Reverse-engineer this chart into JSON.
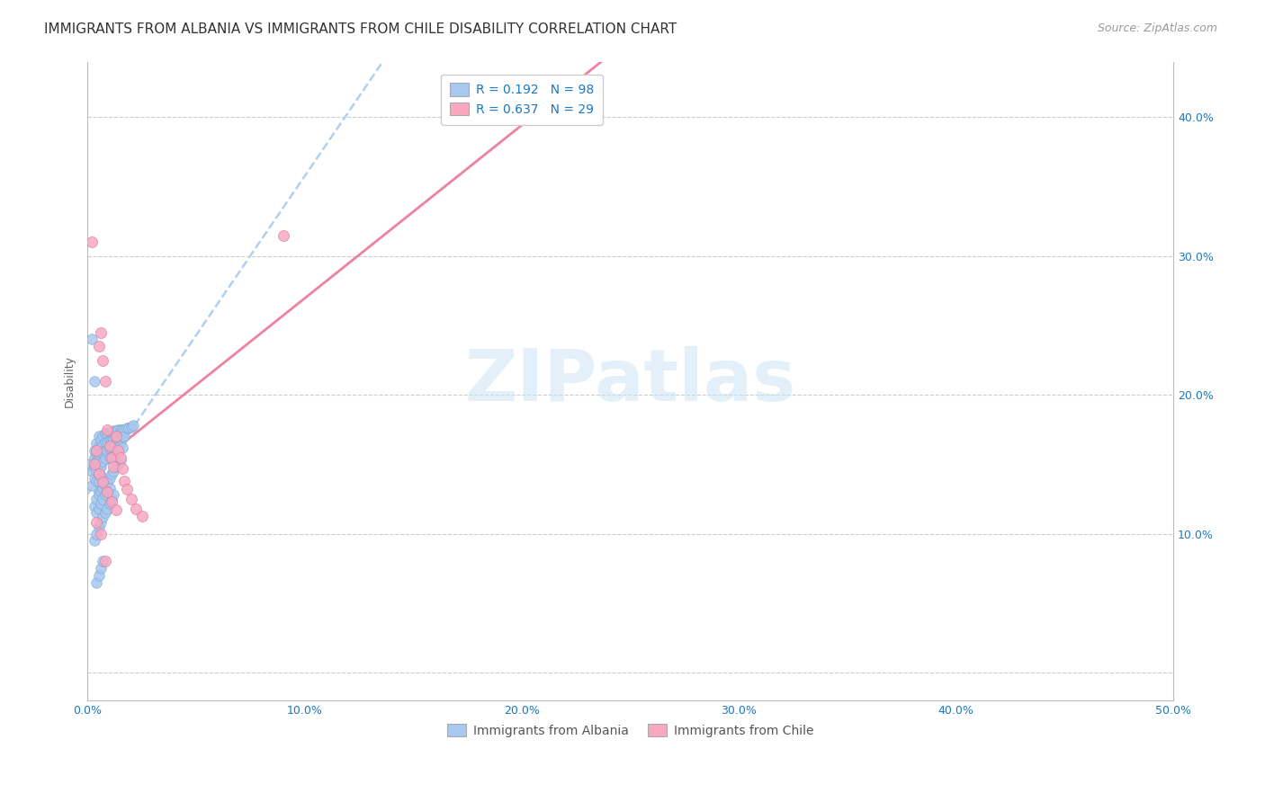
{
  "title": "IMMIGRANTS FROM ALBANIA VS IMMIGRANTS FROM CHILE DISABILITY CORRELATION CHART",
  "source": "Source: ZipAtlas.com",
  "ylabel": "Disability",
  "xlim": [
    0.0,
    0.5
  ],
  "ylim": [
    -0.02,
    0.44
  ],
  "xticks": [
    0.0,
    0.1,
    0.2,
    0.3,
    0.4,
    0.5
  ],
  "yticks": [
    0.0,
    0.1,
    0.2,
    0.3,
    0.4
  ],
  "xticklabels": [
    "0.0%",
    "10.0%",
    "20.0%",
    "30.0%",
    "40.0%",
    "50.0%"
  ],
  "yticklabels_right": [
    "",
    "10.0%",
    "20.0%",
    "30.0%",
    "40.0%"
  ],
  "albania_color": "#a8c8f0",
  "albania_edge": "#7aaad0",
  "chile_color": "#f9a8c0",
  "chile_edge": "#d97898",
  "albania_R": 0.192,
  "albania_N": 98,
  "chile_R": 0.637,
  "chile_N": 29,
  "watermark": "ZIPatlas",
  "title_fontsize": 11,
  "source_fontsize": 9,
  "axis_label_fontsize": 9,
  "tick_fontsize": 9,
  "legend_fontsize": 10,
  "albania_line_color": "#b0d0f0",
  "chile_line_color": "#f080a0",
  "albania_scatter_x": [
    0.001,
    0.002,
    0.002,
    0.003,
    0.003,
    0.003,
    0.003,
    0.004,
    0.004,
    0.004,
    0.004,
    0.004,
    0.005,
    0.005,
    0.005,
    0.005,
    0.005,
    0.005,
    0.005,
    0.006,
    0.006,
    0.006,
    0.006,
    0.006,
    0.007,
    0.007,
    0.007,
    0.007,
    0.008,
    0.008,
    0.008,
    0.008,
    0.009,
    0.009,
    0.009,
    0.01,
    0.01,
    0.01,
    0.01,
    0.011,
    0.011,
    0.011,
    0.012,
    0.012,
    0.012,
    0.013,
    0.013,
    0.014,
    0.014,
    0.015,
    0.015,
    0.015,
    0.016,
    0.016,
    0.017,
    0.017,
    0.018,
    0.019,
    0.02,
    0.021,
    0.003,
    0.004,
    0.004,
    0.005,
    0.005,
    0.006,
    0.006,
    0.007,
    0.007,
    0.008,
    0.008,
    0.009,
    0.009,
    0.01,
    0.01,
    0.011,
    0.012,
    0.013,
    0.014,
    0.015,
    0.003,
    0.004,
    0.005,
    0.006,
    0.007,
    0.008,
    0.009,
    0.01,
    0.011,
    0.012,
    0.002,
    0.003,
    0.004,
    0.005,
    0.006,
    0.007,
    0.014,
    0.016
  ],
  "albania_scatter_y": [
    0.15,
    0.145,
    0.135,
    0.16,
    0.155,
    0.148,
    0.14,
    0.165,
    0.158,
    0.152,
    0.145,
    0.138,
    0.17,
    0.163,
    0.157,
    0.15,
    0.143,
    0.137,
    0.13,
    0.168,
    0.162,
    0.155,
    0.148,
    0.142,
    0.17,
    0.164,
    0.158,
    0.152,
    0.172,
    0.166,
    0.16,
    0.154,
    0.172,
    0.166,
    0.16,
    0.173,
    0.167,
    0.161,
    0.155,
    0.173,
    0.167,
    0.161,
    0.174,
    0.168,
    0.162,
    0.174,
    0.169,
    0.175,
    0.17,
    0.175,
    0.17,
    0.165,
    0.175,
    0.17,
    0.175,
    0.17,
    0.176,
    0.176,
    0.177,
    0.178,
    0.12,
    0.125,
    0.115,
    0.128,
    0.118,
    0.13,
    0.122,
    0.133,
    0.125,
    0.135,
    0.128,
    0.137,
    0.13,
    0.14,
    0.133,
    0.143,
    0.145,
    0.148,
    0.15,
    0.153,
    0.095,
    0.1,
    0.105,
    0.108,
    0.112,
    0.115,
    0.118,
    0.122,
    0.125,
    0.128,
    0.24,
    0.21,
    0.065,
    0.07,
    0.075,
    0.08,
    0.162,
    0.162
  ],
  "chile_scatter_x": [
    0.002,
    0.004,
    0.005,
    0.006,
    0.007,
    0.008,
    0.009,
    0.01,
    0.011,
    0.012,
    0.013,
    0.014,
    0.015,
    0.016,
    0.017,
    0.018,
    0.02,
    0.022,
    0.003,
    0.005,
    0.007,
    0.009,
    0.011,
    0.013,
    0.025,
    0.09,
    0.004,
    0.006,
    0.008
  ],
  "chile_scatter_y": [
    0.31,
    0.16,
    0.235,
    0.245,
    0.225,
    0.21,
    0.175,
    0.163,
    0.155,
    0.148,
    0.17,
    0.16,
    0.155,
    0.147,
    0.138,
    0.132,
    0.125,
    0.118,
    0.15,
    0.143,
    0.137,
    0.13,
    0.123,
    0.117,
    0.113,
    0.315,
    0.108,
    0.1,
    0.08
  ]
}
